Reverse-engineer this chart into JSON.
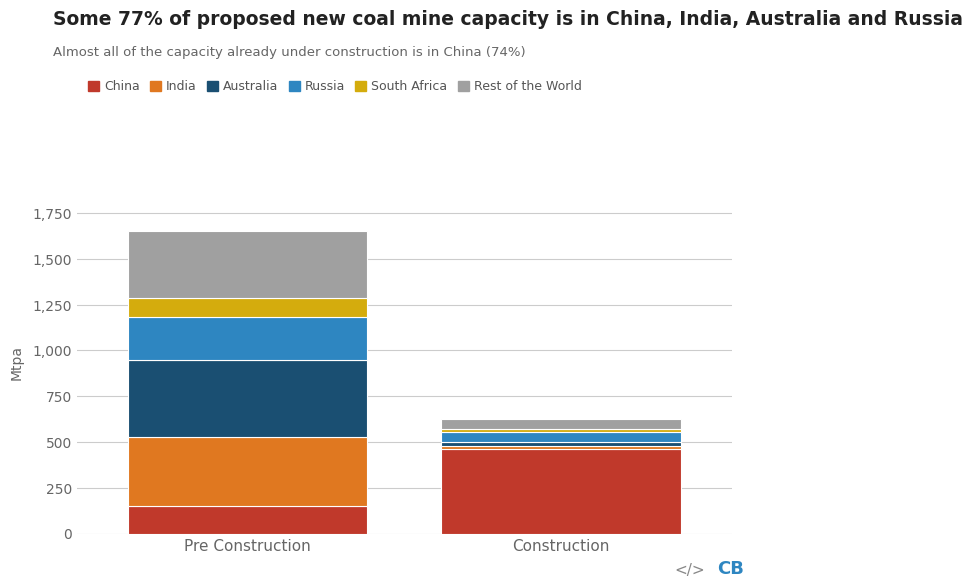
{
  "title": "Some 77% of proposed new coal mine capacity is in China, India, Australia and Russia",
  "subtitle": "Almost all of the capacity already under construction is in China (74%)",
  "ylabel": "Mtpa",
  "categories": [
    "Pre Construction",
    "Construction"
  ],
  "countries": [
    "China",
    "India",
    "Australia",
    "Russia",
    "South Africa",
    "Rest of the World"
  ],
  "colors": {
    "China": "#c0392b",
    "India": "#e07820",
    "Australia": "#1a4f72",
    "Russia": "#2e86c1",
    "South Africa": "#d4ac0d",
    "Rest of the World": "#a0a0a0"
  },
  "values": {
    "Pre Construction": {
      "China": 150,
      "India": 375,
      "Australia": 425,
      "Russia": 235,
      "South Africa": 100,
      "Rest of the World": 370
    },
    "Construction": {
      "China": 460,
      "India": 18,
      "Australia": 22,
      "Russia": 55,
      "South Africa": 15,
      "Rest of the World": 55
    }
  },
  "ylim": [
    0,
    1875
  ],
  "yticks": [
    0,
    250,
    500,
    750,
    1000,
    1250,
    1500,
    1750
  ],
  "title_fontsize": 13.5,
  "subtitle_fontsize": 9.5,
  "background_color": "#ffffff",
  "bar_width": 0.42,
  "legend_fontsize": 9
}
